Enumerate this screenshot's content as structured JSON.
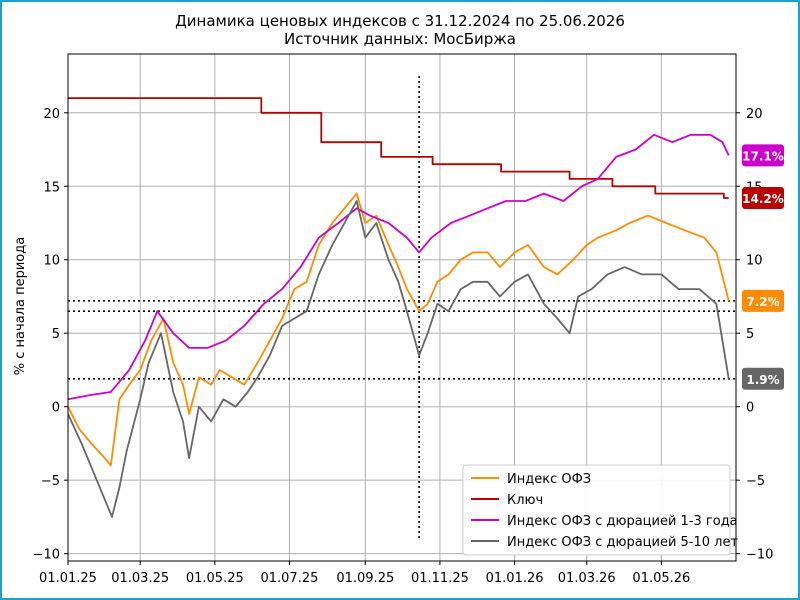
{
  "chart_data": {
    "type": "line",
    "title": "Динамика ценовых индексов с 31.12.2024 по 25.06.2026",
    "subtitle": "Источник данных: МосБиржа",
    "ylabel": "% с начала периода",
    "xlabel": "",
    "ylim": [
      -10.5,
      24
    ],
    "x_range": [
      "2025-01-01",
      "2026-07-01"
    ],
    "x_ticks": [
      "01.01.25",
      "01.03.25",
      "01.05.25",
      "01.07.25",
      "01.09.25",
      "01.11.25",
      "01.01.26",
      "01.03.26",
      "01.05.26"
    ],
    "y_ticks_left": [
      -10,
      -5,
      0,
      5,
      10,
      15,
      20
    ],
    "y_ticks_right": [
      -10,
      -5,
      0,
      5,
      10,
      15,
      20
    ],
    "grid": true,
    "legend_position": "bottom-right",
    "vertical_marker": "2025-10-15",
    "series": [
      {
        "name": "Индекс ОФЗ",
        "color": "#ff8c00",
        "end_label": "7.2%",
        "points": [
          [
            "2025-01-01",
            0
          ],
          [
            "2025-01-10",
            -1.5
          ],
          [
            "2025-01-20",
            -2.5
          ],
          [
            "2025-01-31",
            -3.5
          ],
          [
            "2025-02-05",
            -4.0
          ],
          [
            "2025-02-12",
            0.5
          ],
          [
            "2025-02-20",
            1.5
          ],
          [
            "2025-03-01",
            2.5
          ],
          [
            "2025-03-10",
            4.5
          ],
          [
            "2025-03-20",
            6.0
          ],
          [
            "2025-03-28",
            3.0
          ],
          [
            "2025-04-05",
            1.5
          ],
          [
            "2025-04-10",
            -0.5
          ],
          [
            "2025-04-18",
            2.0
          ],
          [
            "2025-04-28",
            1.5
          ],
          [
            "2025-05-05",
            2.5
          ],
          [
            "2025-05-15",
            2.0
          ],
          [
            "2025-05-25",
            1.5
          ],
          [
            "2025-06-05",
            3.0
          ],
          [
            "2025-06-15",
            4.5
          ],
          [
            "2025-06-25",
            6.0
          ],
          [
            "2025-07-05",
            8.0
          ],
          [
            "2025-07-15",
            8.5
          ],
          [
            "2025-07-25",
            11.0
          ],
          [
            "2025-08-05",
            12.5
          ],
          [
            "2025-08-15",
            13.5
          ],
          [
            "2025-08-25",
            14.5
          ],
          [
            "2025-09-01",
            12.5
          ],
          [
            "2025-09-10",
            13.0
          ],
          [
            "2025-09-20",
            11.0
          ],
          [
            "2025-09-28",
            9.5
          ],
          [
            "2025-10-05",
            8.0
          ],
          [
            "2025-10-15",
            6.5
          ],
          [
            "2025-10-22",
            7.0
          ],
          [
            "2025-10-30",
            8.5
          ],
          [
            "2025-11-08",
            9.0
          ],
          [
            "2025-11-18",
            10.0
          ],
          [
            "2025-11-28",
            10.5
          ],
          [
            "2025-12-10",
            10.5
          ],
          [
            "2025-12-20",
            9.5
          ],
          [
            "2026-01-01",
            10.5
          ],
          [
            "2026-01-12",
            11.0
          ],
          [
            "2026-01-25",
            9.5
          ],
          [
            "2026-02-05",
            9.0
          ],
          [
            "2026-02-18",
            10.0
          ],
          [
            "2026-03-01",
            11.0
          ],
          [
            "2026-03-10",
            11.5
          ],
          [
            "2026-03-25",
            12.0
          ],
          [
            "2026-04-05",
            12.5
          ],
          [
            "2026-04-20",
            13.0
          ],
          [
            "2026-05-05",
            12.5
          ],
          [
            "2026-05-20",
            12.0
          ],
          [
            "2026-06-05",
            11.5
          ],
          [
            "2026-06-15",
            10.5
          ],
          [
            "2026-06-25",
            7.2
          ]
        ]
      },
      {
        "name": "Ключ",
        "color": "#b80000",
        "end_label": "14.2%",
        "points": [
          [
            "2025-01-01",
            21.0
          ],
          [
            "2025-06-08",
            21.0
          ],
          [
            "2025-06-08",
            20.0
          ],
          [
            "2025-07-27",
            20.0
          ],
          [
            "2025-07-27",
            18.0
          ],
          [
            "2025-09-14",
            18.0
          ],
          [
            "2025-09-14",
            17.0
          ],
          [
            "2025-10-26",
            17.0
          ],
          [
            "2025-10-26",
            16.5
          ],
          [
            "2025-12-21",
            16.5
          ],
          [
            "2025-12-21",
            16.0
          ],
          [
            "2026-02-15",
            16.0
          ],
          [
            "2026-02-15",
            15.5
          ],
          [
            "2026-03-22",
            15.5
          ],
          [
            "2026-03-22",
            15.0
          ],
          [
            "2026-04-26",
            15.0
          ],
          [
            "2026-04-26",
            14.5
          ],
          [
            "2026-06-21",
            14.5
          ],
          [
            "2026-06-21",
            14.2
          ],
          [
            "2026-06-25",
            14.2
          ]
        ]
      },
      {
        "name": "Индекс ОФЗ с дюрацией 1-3 года",
        "color": "#cc00cc",
        "end_label": "17.1%",
        "points": [
          [
            "2025-01-01",
            0.5
          ],
          [
            "2025-01-20",
            0.8
          ],
          [
            "2025-02-05",
            1.0
          ],
          [
            "2025-02-20",
            2.5
          ],
          [
            "2025-03-05",
            4.5
          ],
          [
            "2025-03-15",
            6.5
          ],
          [
            "2025-03-28",
            5.0
          ],
          [
            "2025-04-10",
            4.0
          ],
          [
            "2025-04-25",
            4.0
          ],
          [
            "2025-05-10",
            4.5
          ],
          [
            "2025-05-25",
            5.5
          ],
          [
            "2025-06-10",
            7.0
          ],
          [
            "2025-06-25",
            8.0
          ],
          [
            "2025-07-10",
            9.5
          ],
          [
            "2025-07-25",
            11.5
          ],
          [
            "2025-08-10",
            12.5
          ],
          [
            "2025-08-25",
            13.5
          ],
          [
            "2025-09-05",
            13.0
          ],
          [
            "2025-09-20",
            12.5
          ],
          [
            "2025-10-05",
            11.5
          ],
          [
            "2025-10-15",
            10.5
          ],
          [
            "2025-10-25",
            11.5
          ],
          [
            "2025-11-10",
            12.5
          ],
          [
            "2025-11-25",
            13.0
          ],
          [
            "2025-12-10",
            13.5
          ],
          [
            "2025-12-25",
            14.0
          ],
          [
            "2026-01-10",
            14.0
          ],
          [
            "2026-01-25",
            14.5
          ],
          [
            "2026-02-10",
            14.0
          ],
          [
            "2026-02-25",
            15.0
          ],
          [
            "2026-03-10",
            15.5
          ],
          [
            "2026-03-25",
            17.0
          ],
          [
            "2026-04-10",
            17.5
          ],
          [
            "2026-04-25",
            18.5
          ],
          [
            "2026-05-10",
            18.0
          ],
          [
            "2026-05-25",
            18.5
          ],
          [
            "2026-06-10",
            18.5
          ],
          [
            "2026-06-20",
            18.0
          ],
          [
            "2026-06-25",
            17.1
          ]
        ]
      },
      {
        "name": "Индекс ОФЗ с дюрацией 5-10 лет",
        "color": "#666666",
        "end_label": "1.9%",
        "points": [
          [
            "2025-01-01",
            -0.5
          ],
          [
            "2025-01-12",
            -2.5
          ],
          [
            "2025-01-22",
            -4.5
          ],
          [
            "2025-02-01",
            -6.5
          ],
          [
            "2025-02-06",
            -7.5
          ],
          [
            "2025-02-12",
            -5.5
          ],
          [
            "2025-02-18",
            -3.0
          ],
          [
            "2025-03-01",
            0.5
          ],
          [
            "2025-03-08",
            3.0
          ],
          [
            "2025-03-18",
            5.0
          ],
          [
            "2025-03-28",
            1.0
          ],
          [
            "2025-04-05",
            -1.0
          ],
          [
            "2025-04-10",
            -3.5
          ],
          [
            "2025-04-18",
            0.0
          ],
          [
            "2025-04-28",
            -1.0
          ],
          [
            "2025-05-08",
            0.5
          ],
          [
            "2025-05-18",
            0.0
          ],
          [
            "2025-05-28",
            1.0
          ],
          [
            "2025-06-05",
            2.0
          ],
          [
            "2025-06-15",
            3.5
          ],
          [
            "2025-06-25",
            5.5
          ],
          [
            "2025-07-05",
            6.0
          ],
          [
            "2025-07-15",
            6.5
          ],
          [
            "2025-07-25",
            9.0
          ],
          [
            "2025-08-05",
            11.0
          ],
          [
            "2025-08-15",
            12.5
          ],
          [
            "2025-08-25",
            14.0
          ],
          [
            "2025-09-01",
            11.5
          ],
          [
            "2025-09-10",
            12.5
          ],
          [
            "2025-09-20",
            10.0
          ],
          [
            "2025-09-28",
            8.5
          ],
          [
            "2025-10-05",
            6.5
          ],
          [
            "2025-10-15",
            3.5
          ],
          [
            "2025-10-22",
            5.0
          ],
          [
            "2025-10-30",
            7.0
          ],
          [
            "2025-11-08",
            6.5
          ],
          [
            "2025-11-18",
            8.0
          ],
          [
            "2025-11-28",
            8.5
          ],
          [
            "2025-12-10",
            8.5
          ],
          [
            "2025-12-20",
            7.5
          ],
          [
            "2026-01-01",
            8.5
          ],
          [
            "2026-01-12",
            9.0
          ],
          [
            "2026-01-25",
            7.0
          ],
          [
            "2026-02-05",
            6.0
          ],
          [
            "2026-02-15",
            5.0
          ],
          [
            "2026-02-22",
            7.5
          ],
          [
            "2026-03-05",
            8.0
          ],
          [
            "2026-03-18",
            9.0
          ],
          [
            "2026-04-01",
            9.5
          ],
          [
            "2026-04-15",
            9.0
          ],
          [
            "2026-05-01",
            9.0
          ],
          [
            "2026-05-15",
            8.0
          ],
          [
            "2026-06-01",
            8.0
          ],
          [
            "2026-06-15",
            7.0
          ],
          [
            "2026-06-25",
            1.9
          ]
        ]
      }
    ]
  }
}
